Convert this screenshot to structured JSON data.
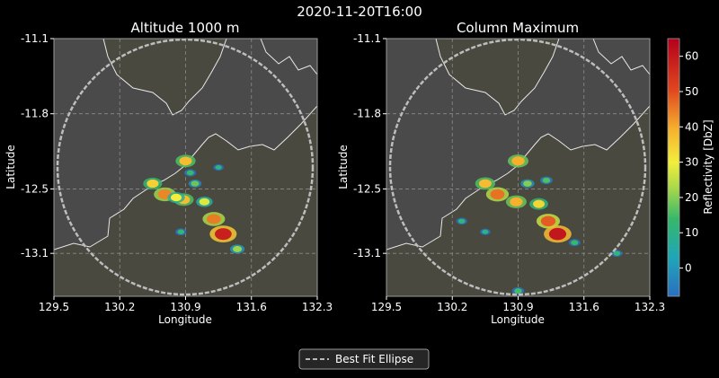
{
  "figure": {
    "title": "2020-11-20T16:00",
    "background": "#000000",
    "plot_background": "#4a4a4a",
    "land_color": "#49493f",
    "coast_color": "#e8e8e8",
    "ring_color": "#bdbdbd"
  },
  "chart_data": [
    {
      "type": "heatmap",
      "title": "Altitude 1000 m",
      "xlabel": "Longitude",
      "ylabel": "Latitude",
      "xlim": [
        129.5,
        132.3
      ],
      "ylim": [
        -13.5,
        -11.1
      ],
      "xticks": [
        "129.5",
        "130.2",
        "130.9",
        "131.6",
        "132.3"
      ],
      "yticks": [
        "-11.1",
        "-11.8",
        "-12.5",
        "-13.1"
      ],
      "grid": true,
      "cells": [
        {
          "lon": 130.9,
          "lat": -12.24,
          "dbz": 38
        },
        {
          "lon": 130.55,
          "lat": -12.45,
          "dbz": 35
        },
        {
          "lon": 130.68,
          "lat": -12.55,
          "dbz": 44
        },
        {
          "lon": 130.88,
          "lat": -12.6,
          "dbz": 38
        },
        {
          "lon": 130.8,
          "lat": -12.58,
          "dbz": 30
        },
        {
          "lon": 131.0,
          "lat": -12.45,
          "dbz": 18
        },
        {
          "lon": 131.1,
          "lat": -12.62,
          "dbz": 28
        },
        {
          "lon": 131.2,
          "lat": -12.78,
          "dbz": 45
        },
        {
          "lon": 131.3,
          "lat": -12.92,
          "dbz": 58
        },
        {
          "lon": 131.45,
          "lat": -13.06,
          "dbz": 22
        },
        {
          "lon": 130.95,
          "lat": -12.35,
          "dbz": 14
        },
        {
          "lon": 131.25,
          "lat": -12.3,
          "dbz": 10
        },
        {
          "lon": 130.85,
          "lat": -12.9,
          "dbz": 12
        }
      ]
    },
    {
      "type": "heatmap",
      "title": "Column Maximum",
      "xlabel": "Longitude",
      "ylabel": "",
      "xlim": [
        129.5,
        132.3
      ],
      "ylim": [
        -13.5,
        -11.1
      ],
      "xticks": [
        "129.5",
        "130.2",
        "130.9",
        "131.6",
        "132.3"
      ],
      "yticks": [
        "-11.1",
        "-11.8",
        "-12.5",
        "-13.1"
      ],
      "grid": true,
      "cells": [
        {
          "lon": 130.9,
          "lat": -12.24,
          "dbz": 40
        },
        {
          "lon": 130.55,
          "lat": -12.45,
          "dbz": 38
        },
        {
          "lon": 130.68,
          "lat": -12.55,
          "dbz": 46
        },
        {
          "lon": 130.88,
          "lat": -12.62,
          "dbz": 40
        },
        {
          "lon": 131.0,
          "lat": -12.45,
          "dbz": 20
        },
        {
          "lon": 131.12,
          "lat": -12.64,
          "dbz": 34
        },
        {
          "lon": 131.22,
          "lat": -12.8,
          "dbz": 48
        },
        {
          "lon": 131.32,
          "lat": -12.92,
          "dbz": 60
        },
        {
          "lon": 131.2,
          "lat": -12.42,
          "dbz": 16
        },
        {
          "lon": 130.3,
          "lat": -12.8,
          "dbz": 12
        },
        {
          "lon": 130.55,
          "lat": -12.9,
          "dbz": 10
        },
        {
          "lon": 131.5,
          "lat": -13.0,
          "dbz": 14
        },
        {
          "lon": 131.95,
          "lat": -13.1,
          "dbz": 12
        },
        {
          "lon": 130.9,
          "lat": -13.45,
          "dbz": 15
        }
      ]
    }
  ],
  "colorbar": {
    "label": "Reflectivity [DbZ]",
    "min": -8,
    "max": 65,
    "ticks": [
      "0",
      "10",
      "20",
      "30",
      "40",
      "50",
      "60"
    ],
    "tick_values": [
      0,
      10,
      20,
      30,
      40,
      50,
      60
    ]
  },
  "legend": {
    "entry": "Best Fit Ellipse",
    "placement": "bottom-center"
  }
}
